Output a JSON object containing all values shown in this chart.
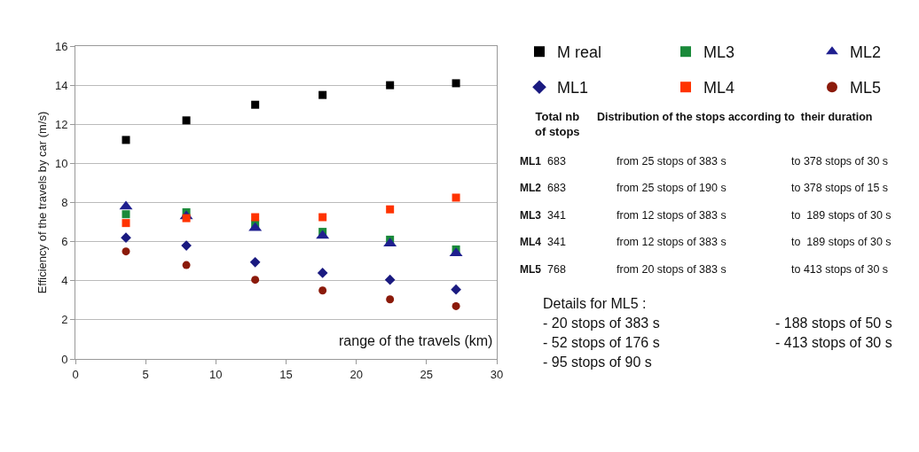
{
  "chart_data": {
    "type": "scatter",
    "ylabel": "Efficiency of the travels by car (m/s)",
    "xlabel": "range of the travels (km)",
    "x": [
      3.6,
      7.9,
      12.8,
      17.6,
      22.4,
      27.1
    ],
    "xlim": [
      0,
      30
    ],
    "xticks": [
      0,
      5,
      10,
      15,
      20,
      25,
      30
    ],
    "ylim": [
      0,
      16
    ],
    "yticks": [
      0,
      2,
      4,
      6,
      8,
      10,
      12,
      14,
      16
    ],
    "grid": "y",
    "legend": "right",
    "series": [
      {
        "name": "M real",
        "color": "#000000",
        "marker": "square",
        "values": [
          11.2,
          12.2,
          13.0,
          13.5,
          14.0,
          14.1
        ]
      },
      {
        "name": "ML3",
        "color": "#1a8a3a",
        "marker": "square",
        "values": [
          7.4,
          7.5,
          6.9,
          6.5,
          6.1,
          5.6
        ]
      },
      {
        "name": "ML2",
        "color": "#1f1f8f",
        "marker": "triangle",
        "values": [
          7.8,
          7.3,
          6.7,
          6.3,
          5.9,
          5.4
        ]
      },
      {
        "name": "ML1",
        "color": "#1a1a80",
        "marker": "diamond",
        "values": [
          6.2,
          5.8,
          4.95,
          4.4,
          4.05,
          3.55
        ]
      },
      {
        "name": "ML4",
        "color": "#ff3300",
        "marker": "square",
        "values": [
          6.95,
          7.2,
          7.25,
          7.25,
          7.65,
          8.25
        ]
      },
      {
        "name": "ML5",
        "color": "#8b1a0a",
        "marker": "circle",
        "values": [
          5.5,
          4.8,
          4.05,
          3.5,
          3.05,
          2.7
        ]
      }
    ],
    "annotations": [
      "Total nb\nof stops",
      "Distribution of the stops according to  their duration",
      "ML1",
      "683",
      "from 25 stops of 383 s",
      "to 378 stops of 30 s",
      "ML2",
      "683",
      "from 25 stops of 190 s",
      "to 378 stops of 15 s",
      "ML3",
      "341",
      "from 12 stops of 383 s",
      "to  189 stops of 30 s",
      "ML4",
      "341",
      "from 12 stops of 383 s",
      "to  189 stops of 30 s",
      "ML5",
      "768",
      "from 20 stops of 383 s",
      "to 413 stops of 30 s",
      "Details for ML5 :",
      "- 20 stops of 383 s",
      "- 52 stops of 176 s",
      "- 95 stops of 90 s",
      "- 188 stops of 50 s",
      "- 413 stops of 30 s"
    ]
  }
}
